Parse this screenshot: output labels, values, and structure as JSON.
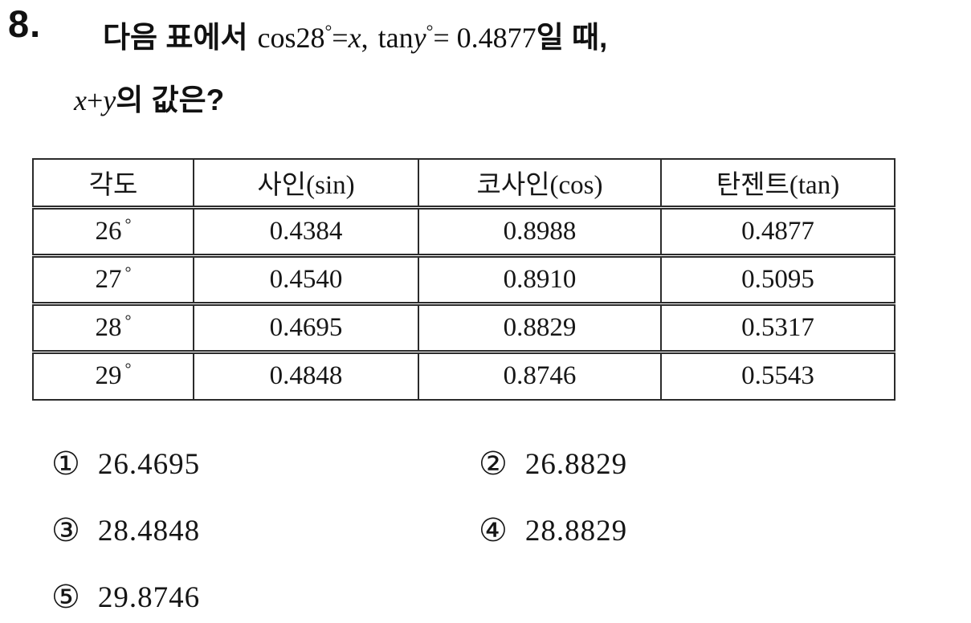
{
  "question": {
    "number": "8.",
    "line1": {
      "kr1": "다음 표에서",
      "m_cos": "cos28",
      "deg1": "°",
      "m_eq1": "=",
      "x": "x",
      "comma": ",",
      "m_tan": "tan",
      "y": "y",
      "deg2": "°",
      "m_eq2": "= 0.4877",
      "kr2": "일 때,"
    },
    "line2": {
      "x": "x",
      "plus": "+",
      "y": "y",
      "kr": "의  값은?"
    }
  },
  "table": {
    "headers": [
      "각도",
      "사인(sin)",
      "코사인(cos)",
      "탄젠트(tan)"
    ],
    "rows": [
      {
        "angle": "26",
        "deg": "°",
        "sin": "0.4384",
        "cos": "0.8988",
        "tan": "0.4877"
      },
      {
        "angle": "27",
        "deg": "°",
        "sin": "0.4540",
        "cos": "0.8910",
        "tan": "0.5095"
      },
      {
        "angle": "28",
        "deg": "°",
        "sin": "0.4695",
        "cos": "0.8829",
        "tan": "0.5317"
      },
      {
        "angle": "29",
        "deg": "°",
        "sin": "0.4848",
        "cos": "0.8746",
        "tan": "0.5543"
      }
    ]
  },
  "choices": [
    {
      "marker": "①",
      "value": "26.4695"
    },
    {
      "marker": "②",
      "value": "26.8829"
    },
    {
      "marker": "③",
      "value": "28.4848"
    },
    {
      "marker": "④",
      "value": "28.8829"
    },
    {
      "marker": "⑤",
      "value": "29.8746"
    }
  ]
}
